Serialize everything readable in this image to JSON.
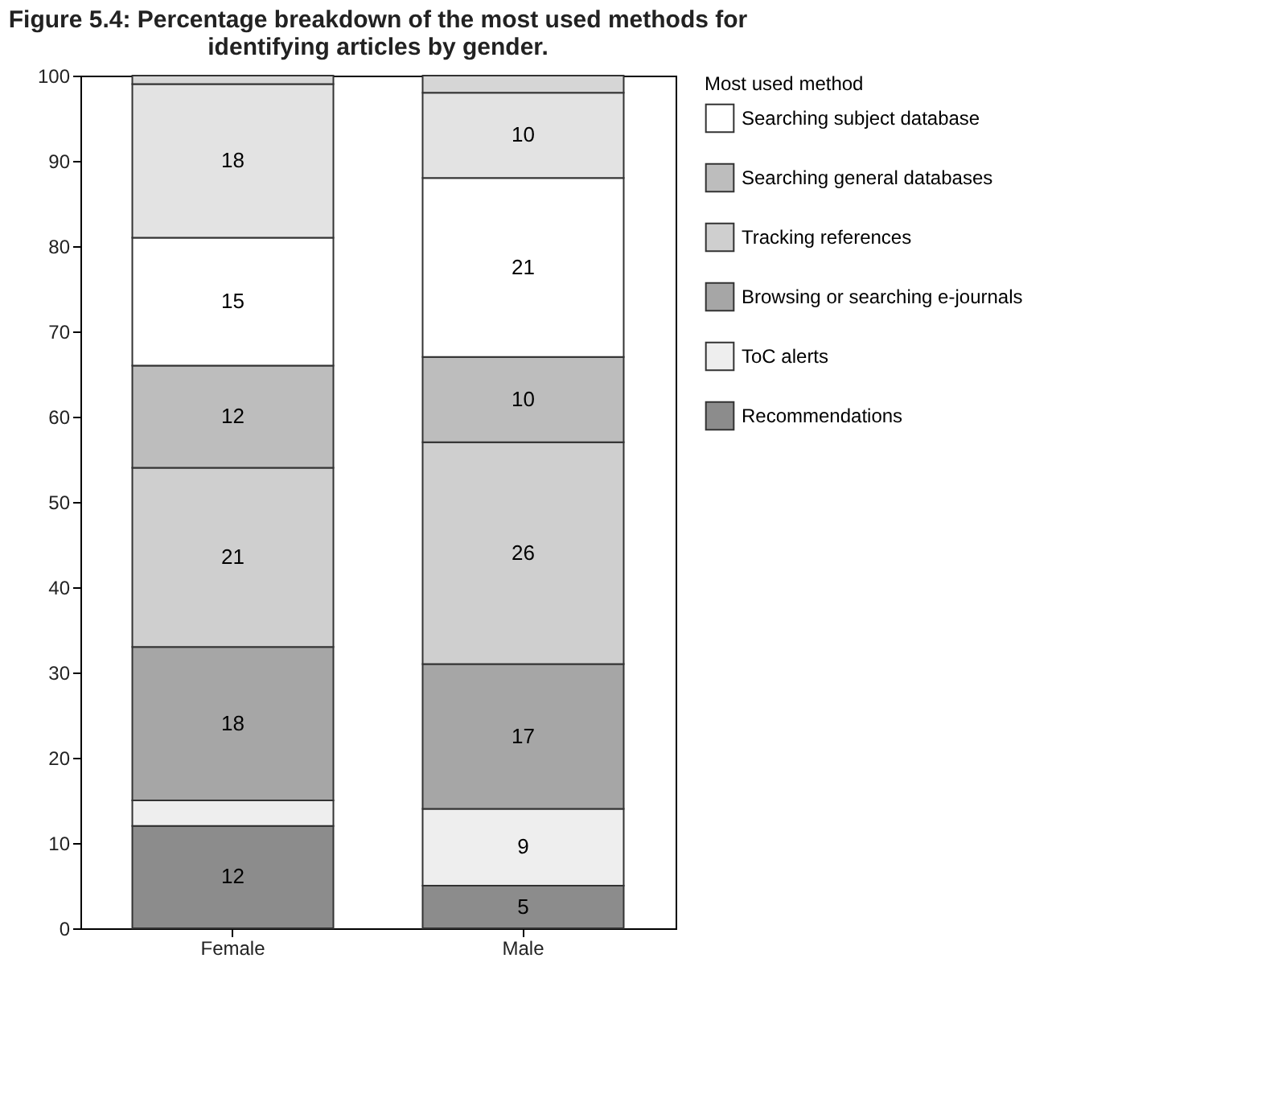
{
  "chart_data": {
    "type": "bar",
    "stacked": true,
    "title": "Figure 5.4: Percentage breakdown of the most used methods for identifying articles by gender.",
    "legend_title": "Most used method",
    "categories": [
      "Female",
      "Male"
    ],
    "ylim": [
      0,
      100
    ],
    "yticks": [
      0,
      10,
      20,
      30,
      40,
      50,
      60,
      70,
      80,
      90,
      100
    ],
    "grid": false,
    "legend": "right",
    "series": [
      {
        "name": "Recommendations",
        "color": "#8c8c8c",
        "values": [
          12,
          5
        ],
        "value_labels": [
          "12",
          "5"
        ]
      },
      {
        "name": "ToC alerts",
        "color": "#eeeeee",
        "values": [
          3,
          9
        ],
        "value_labels": [
          null,
          "9"
        ]
      },
      {
        "name": "Browsing or searching e-journals",
        "color": "#a6a6a6",
        "values": [
          18,
          17
        ],
        "value_labels": [
          "18",
          "17"
        ]
      },
      {
        "name": "Tracking references",
        "color": "#cfcfcf",
        "values": [
          21,
          26
        ],
        "value_labels": [
          "21",
          "26"
        ]
      },
      {
        "name": "Searching general databases",
        "color": "#bdbdbd",
        "values": [
          12,
          10
        ],
        "value_labels": [
          "12",
          "10"
        ]
      },
      {
        "name": "Searching subject database",
        "color": "#ffffff",
        "values": [
          15,
          21
        ],
        "value_labels": [
          "15",
          "21"
        ]
      },
      {
        "color": "#e3e3e3",
        "values": [
          18,
          10
        ],
        "value_labels": [
          "18",
          "10"
        ]
      },
      {
        "color": "#d6d6d6",
        "values": [
          1,
          2
        ],
        "value_labels": [
          null,
          null
        ]
      }
    ]
  }
}
